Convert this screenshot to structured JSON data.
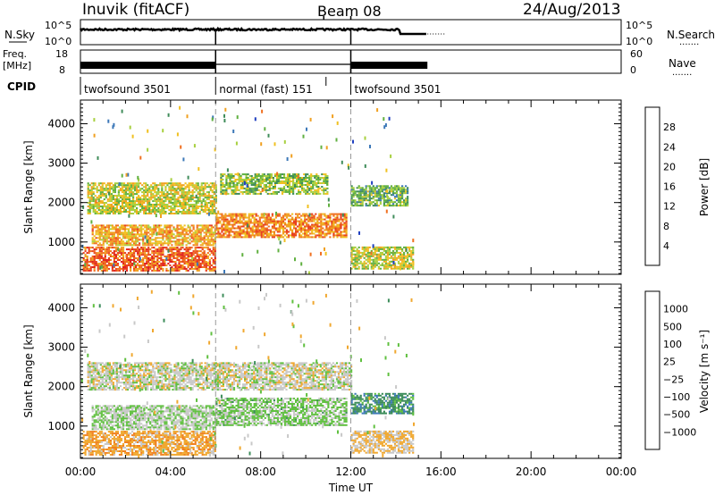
{
  "header": {
    "station": "Inuvik  (fitACF)",
    "beam": "Beam 08",
    "date": "24/Aug/2013"
  },
  "labels": {
    "nsky": "N.Sky",
    "nsearch": "N.Search",
    "freq_line1": "Freq.",
    "freq_line2": "[MHz]",
    "nave": "Nave",
    "cpid": "CPID",
    "noise_tick_top": "10^5",
    "noise_tick_bottom": "10^0",
    "freq_tick_top": "18",
    "freq_tick_bottom": "8",
    "nave_tick_top": "60",
    "nave_tick_bottom": "0",
    "legend_dots": "......."
  },
  "cpid_segments": [
    {
      "label": "twofsound 3501",
      "start_hour": 0
    },
    {
      "label": "normal (fast) 151",
      "start_hour": 6
    },
    {
      "label": "twofsound 3501",
      "start_hour": 12
    }
  ],
  "chart_data": [
    {
      "type": "heatmap",
      "quantity": "Power",
      "colorbar_label": "Power [dB]",
      "colorbar_ticks": [
        "4",
        "8",
        "12",
        "16",
        "20",
        "24",
        "28"
      ],
      "colorbar_range": [
        0,
        30
      ],
      "ylabel": "Slant Range [km]",
      "yticks": [
        "1000",
        "2000",
        "3000",
        "4000"
      ],
      "ylim": [
        180,
        4600
      ],
      "xlim": [
        0,
        24
      ],
      "xticks": [
        "00:00",
        "04:00",
        "08:00",
        "12:00",
        "16:00",
        "20:00",
        "00:00"
      ],
      "xlabel": "Time UT",
      "colors": [
        "#1010e0",
        "#2040c0",
        "#3c78b8",
        "#3f8c5a",
        "#60b040",
        "#a8d040",
        "#f0c020",
        "#f0a020",
        "#f07020",
        "#e84020",
        "#e02020"
      ],
      "echo_bands": [
        {
          "start_hour": 0.1,
          "end_hour": 6.0,
          "range_km": [
            250,
            850
          ],
          "value_db": 24
        },
        {
          "start_hour": 0.5,
          "end_hour": 6.0,
          "range_km": [
            900,
            1400
          ],
          "value_db": 20
        },
        {
          "start_hour": 0.3,
          "end_hour": 6.0,
          "range_km": [
            1700,
            2500
          ],
          "value_db": 16
        },
        {
          "start_hour": 6.0,
          "end_hour": 11.8,
          "range_km": [
            1100,
            1700
          ],
          "value_db": 22
        },
        {
          "start_hour": 6.2,
          "end_hour": 11.0,
          "range_km": [
            2200,
            2700
          ],
          "value_db": 14
        },
        {
          "start_hour": 12.0,
          "end_hour": 14.8,
          "range_km": [
            300,
            850
          ],
          "value_db": 16
        },
        {
          "start_hour": 12.0,
          "end_hour": 14.5,
          "range_km": [
            1900,
            2400
          ],
          "value_db": 12
        }
      ]
    },
    {
      "type": "heatmap",
      "quantity": "Velocity",
      "colorbar_label": "Velocity [m s⁻¹]",
      "colorbar_ticks": [
        "-1000",
        "-500",
        "-100",
        "-25",
        "25",
        "100",
        "500",
        "1000"
      ],
      "colorbar_range": [
        -1300,
        1300
      ],
      "ylabel": "Slant Range [km]",
      "yticks": [
        "1000",
        "2000",
        "3000",
        "4000"
      ],
      "ylim": [
        180,
        4600
      ],
      "xlim": [
        0,
        24
      ],
      "xticks": [
        "00:00",
        "04:00",
        "08:00",
        "12:00",
        "16:00",
        "20:00",
        "00:00"
      ],
      "xlabel": "Time UT",
      "colors": [
        "#e02020",
        "#f05020",
        "#f08020",
        "#f0a830",
        "#c8c8c8",
        "#60c040",
        "#3c8c5a",
        "#3c78b8",
        "#2040c0"
      ],
      "echo_bands": [
        {
          "start_hour": 0.1,
          "end_hour": 6.0,
          "range_km": [
            250,
            850
          ],
          "value_ms": -300
        },
        {
          "start_hour": 0.5,
          "end_hour": 6.0,
          "range_km": [
            900,
            1500
          ],
          "value_ms": 120
        },
        {
          "start_hour": 0.3,
          "end_hour": 12.0,
          "range_km": [
            1900,
            2600
          ],
          "value_ms": 0
        },
        {
          "start_hour": 6.0,
          "end_hour": 11.8,
          "range_km": [
            1000,
            1700
          ],
          "value_ms": 200
        },
        {
          "start_hour": 12.0,
          "end_hour": 14.8,
          "range_km": [
            300,
            850
          ],
          "value_ms": -150
        },
        {
          "start_hour": 12.0,
          "end_hour": 14.8,
          "range_km": [
            1300,
            1800
          ],
          "value_ms": 600
        }
      ]
    }
  ]
}
